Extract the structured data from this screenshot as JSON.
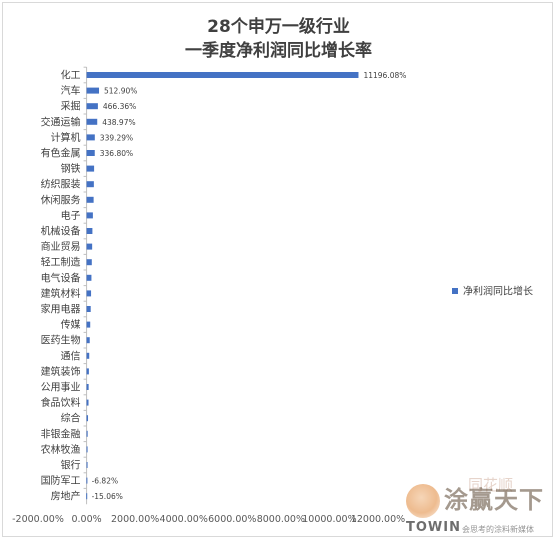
{
  "chart_data": {
    "type": "bar",
    "orientation": "horizontal",
    "title_line1": "28个申万一级行业",
    "title_line2": "一季度净利润同比增长率",
    "categories": [
      "化工",
      "汽车",
      "采掘",
      "交通运输",
      "计算机",
      "有色金属",
      "钢铁",
      "纺织服装",
      "休闲服务",
      "电子",
      "机械设备",
      "商业贸易",
      "轻工制造",
      "电气设备",
      "建筑材料",
      "家用电器",
      "传媒",
      "医药生物",
      "通信",
      "建筑装饰",
      "公用事业",
      "食品饮料",
      "综合",
      "非银金融",
      "农林牧渔",
      "银行",
      "国防军工",
      "房地产"
    ],
    "series": [
      {
        "name": "净利润同比增长",
        "color": "#4472c4",
        "values": [
          11196.08,
          512.9,
          466.36,
          438.97,
          339.29,
          336.8,
          310,
          300,
          290,
          260,
          240,
          230,
          215,
          200,
          185,
          170,
          150,
          130,
          110,
          95,
          85,
          80,
          60,
          45,
          30,
          15,
          -6.82,
          -15.06
        ]
      }
    ],
    "data_labels": [
      "11196.08%",
      "512.90%",
      "466.36%",
      "438.97%",
      "339.29%",
      "336.80%",
      "",
      "",
      "",
      "",
      "",
      "",
      "",
      "",
      "",
      "",
      "",
      "",
      "",
      "",
      "",
      "",
      "",
      "",
      "",
      "",
      "-6.82%",
      "-15.06%"
    ],
    "x_ticks": [
      "-2000.00%",
      "0.00%",
      "2000.00%",
      "4000.00%",
      "6000.00%",
      "8000.00%",
      "10000.00%",
      "12000.00%"
    ],
    "x_tick_values": [
      -2000,
      0,
      2000,
      4000,
      6000,
      8000,
      10000,
      12000
    ],
    "xlim": [
      -2000,
      12000
    ],
    "legend_position": "right",
    "grid": false
  },
  "watermark": {
    "cn": "涂赢天下",
    "cn_faint": "同花顺",
    "en": "TOWIN",
    "sub": "会思考的涂料新媒体"
  }
}
